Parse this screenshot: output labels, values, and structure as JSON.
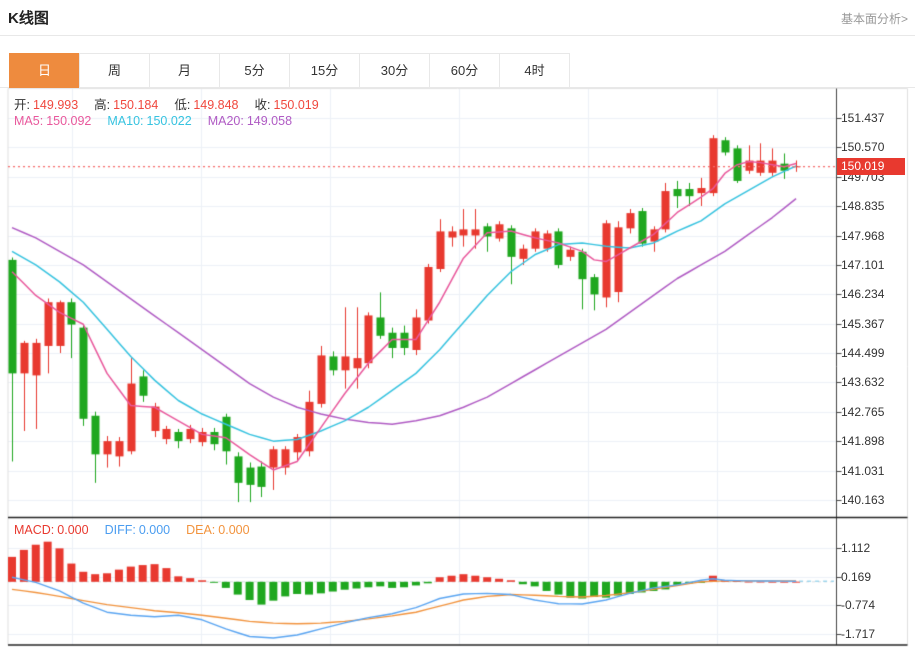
{
  "header": {
    "title": "K线图",
    "fundamental_link": "基本面分析>"
  },
  "tabs": [
    {
      "key": "day",
      "label": "日",
      "active": true
    },
    {
      "key": "week",
      "label": "周",
      "active": false
    },
    {
      "key": "month",
      "label": "月",
      "active": false
    },
    {
      "key": "min5",
      "label": "5分",
      "active": false
    },
    {
      "key": "min15",
      "label": "15分",
      "active": false
    },
    {
      "key": "min30",
      "label": "30分",
      "active": false
    },
    {
      "key": "min60",
      "label": "60分",
      "active": false
    },
    {
      "key": "hour4",
      "label": "4时",
      "active": false
    }
  ],
  "ohlc_bar": {
    "label_color": "#333333",
    "value_color": "#f0483e",
    "items": [
      {
        "label": "开:",
        "value": "149.993"
      },
      {
        "label": "高:",
        "value": "150.184"
      },
      {
        "label": "低:",
        "value": "149.848"
      },
      {
        "label": "收:",
        "value": "150.019"
      }
    ]
  },
  "ma_bar": {
    "items": [
      {
        "label": "MA5:",
        "value": "150.092",
        "color": "#e9589c"
      },
      {
        "label": "MA10:",
        "value": "150.022",
        "color": "#36c3e0"
      },
      {
        "label": "MA20:",
        "value": "149.058",
        "color": "#b05bc4"
      }
    ]
  },
  "macd_bar": {
    "items": [
      {
        "label": "MACD:",
        "value": "0.000",
        "color": "#e8392f"
      },
      {
        "label": "DIFF:",
        "value": "0.000",
        "color": "#4b9df0"
      },
      {
        "label": "DEA:",
        "value": "0.000",
        "color": "#f2933d"
      }
    ]
  },
  "price_badge": {
    "value": "150.019",
    "bg": "#e8392f"
  },
  "chart_data": {
    "type": "candlestick",
    "title": "K线图 (daily)",
    "price_axis_ticks": [
      151.437,
      150.57,
      149.703,
      148.835,
      147.968,
      147.101,
      146.234,
      145.367,
      144.499,
      143.632,
      142.765,
      141.898,
      141.031,
      140.163
    ],
    "macd_axis_ticks": [
      1.112,
      0.169,
      -0.774,
      -1.717
    ],
    "last_price": 150.019,
    "legend": {
      "ma5": 150.092,
      "ma10": 150.022,
      "ma20": 149.058,
      "macd": 0.0,
      "diff": 0.0,
      "dea": 0.0
    },
    "candles_ohlc": [
      [
        147.25,
        147.32,
        141.3,
        143.9
      ],
      [
        143.9,
        144.86,
        142.2,
        144.8
      ],
      [
        143.84,
        144.92,
        142.26,
        144.8
      ],
      [
        144.71,
        146.11,
        143.9,
        146.0
      ],
      [
        144.71,
        146.05,
        144.5,
        146.0
      ],
      [
        146.0,
        146.11,
        144.35,
        145.34
      ],
      [
        145.25,
        145.34,
        142.35,
        142.56
      ],
      [
        142.65,
        142.77,
        140.67,
        141.51
      ],
      [
        141.51,
        142.05,
        141.12,
        141.9
      ],
      [
        141.45,
        142.02,
        141.15,
        141.9
      ],
      [
        141.6,
        144.35,
        141.51,
        143.6
      ],
      [
        143.81,
        143.99,
        143.06,
        143.24
      ],
      [
        142.2,
        143.03,
        142.02,
        142.92
      ],
      [
        141.96,
        142.35,
        141.81,
        142.26
      ],
      [
        142.17,
        142.26,
        141.69,
        141.9
      ],
      [
        141.96,
        142.38,
        141.84,
        142.26
      ],
      [
        141.87,
        142.29,
        141.75,
        142.17
      ],
      [
        142.17,
        142.29,
        141.63,
        141.81
      ],
      [
        142.62,
        142.71,
        141.21,
        141.6
      ],
      [
        141.45,
        141.57,
        140.1,
        140.67
      ],
      [
        141.12,
        141.27,
        140.1,
        140.61
      ],
      [
        141.15,
        141.3,
        140.25,
        140.55
      ],
      [
        141.12,
        141.75,
        140.46,
        141.66
      ],
      [
        141.12,
        141.75,
        140.91,
        141.66
      ],
      [
        141.57,
        142.11,
        141.33,
        142.02
      ],
      [
        141.6,
        143.39,
        141.45,
        143.06
      ],
      [
        143.0,
        144.71,
        142.89,
        144.43
      ],
      [
        144.4,
        144.55,
        143.84,
        143.99
      ],
      [
        143.99,
        145.85,
        143.45,
        144.4
      ],
      [
        144.05,
        145.85,
        143.45,
        144.35
      ],
      [
        144.2,
        145.7,
        144.05,
        145.61
      ],
      [
        145.55,
        146.29,
        144.92,
        145.01
      ],
      [
        145.1,
        145.25,
        144.35,
        144.65
      ],
      [
        145.1,
        145.31,
        144.44,
        144.65
      ],
      [
        144.59,
        145.79,
        144.44,
        145.55
      ],
      [
        145.46,
        147.13,
        145.37,
        147.04
      ],
      [
        146.98,
        148.45,
        146.89,
        148.09
      ],
      [
        147.91,
        148.24,
        147.64,
        148.09
      ],
      [
        147.97,
        148.75,
        147.64,
        148.15
      ],
      [
        147.97,
        148.75,
        147.58,
        148.15
      ],
      [
        148.24,
        148.33,
        147.49,
        147.94
      ],
      [
        147.88,
        148.39,
        147.79,
        148.3
      ],
      [
        148.18,
        148.27,
        146.53,
        147.34
      ],
      [
        147.28,
        147.7,
        147.1,
        147.58
      ],
      [
        147.58,
        148.18,
        147.49,
        148.09
      ],
      [
        147.58,
        148.12,
        147.49,
        148.03
      ],
      [
        148.09,
        148.18,
        147.0,
        147.1
      ],
      [
        147.34,
        147.64,
        147.22,
        147.55
      ],
      [
        147.49,
        147.58,
        145.79,
        146.68
      ],
      [
        146.74,
        146.83,
        145.76,
        146.23
      ],
      [
        146.14,
        148.42,
        145.85,
        148.33
      ],
      [
        146.3,
        148.39,
        146.0,
        148.21
      ],
      [
        148.18,
        148.75,
        148.03,
        148.63
      ],
      [
        148.69,
        148.78,
        147.64,
        147.73
      ],
      [
        147.79,
        148.24,
        147.49,
        148.15
      ],
      [
        148.15,
        149.52,
        148.06,
        149.28
      ],
      [
        149.34,
        149.58,
        148.78,
        149.13
      ],
      [
        149.34,
        149.52,
        148.84,
        149.13
      ],
      [
        149.22,
        149.67,
        148.84,
        149.37
      ],
      [
        149.22,
        150.93,
        149.13,
        150.84
      ],
      [
        150.78,
        150.87,
        150.33,
        150.42
      ],
      [
        150.54,
        150.63,
        149.52,
        149.58
      ],
      [
        149.88,
        150.63,
        149.79,
        150.18
      ],
      [
        149.82,
        150.69,
        149.73,
        150.18
      ],
      [
        149.82,
        150.54,
        149.73,
        150.18
      ],
      [
        150.09,
        150.39,
        149.64,
        149.88
      ],
      [
        149.993,
        150.184,
        149.848,
        150.019
      ]
    ],
    "ma5_anchors": [
      [
        0,
        146.9
      ],
      [
        2,
        146.2
      ],
      [
        4,
        145.7
      ],
      [
        6,
        145.35
      ],
      [
        8,
        143.9
      ],
      [
        10,
        142.95
      ],
      [
        12,
        142.9
      ],
      [
        14,
        142.5
      ],
      [
        16,
        142.1
      ],
      [
        18,
        142.0
      ],
      [
        20,
        141.5
      ],
      [
        22,
        141.05
      ],
      [
        24,
        141.3
      ],
      [
        26,
        142.3
      ],
      [
        28,
        143.3
      ],
      [
        30,
        144.2
      ],
      [
        32,
        144.9
      ],
      [
        34,
        144.9
      ],
      [
        36,
        146.0
      ],
      [
        38,
        147.3
      ],
      [
        40,
        148.05
      ],
      [
        42,
        148.1
      ],
      [
        44,
        147.9
      ],
      [
        46,
        147.75
      ],
      [
        48,
        147.5
      ],
      [
        49,
        147.25
      ],
      [
        50,
        147.2
      ],
      [
        52,
        147.6
      ],
      [
        54,
        148.0
      ],
      [
        56,
        148.65
      ],
      [
        58,
        149.1
      ],
      [
        59,
        149.35
      ],
      [
        60,
        149.8
      ],
      [
        61,
        150.05
      ],
      [
        62,
        150.15
      ],
      [
        63,
        150.12
      ],
      [
        64,
        150.06
      ],
      [
        65,
        150.0
      ],
      [
        66,
        150.092
      ]
    ],
    "ma10_anchors": [
      [
        0,
        147.5
      ],
      [
        2,
        147.1
      ],
      [
        4,
        146.6
      ],
      [
        6,
        146.0
      ],
      [
        8,
        145.2
      ],
      [
        10,
        144.4
      ],
      [
        12,
        143.7
      ],
      [
        14,
        143.1
      ],
      [
        16,
        142.7
      ],
      [
        18,
        142.4
      ],
      [
        20,
        142.1
      ],
      [
        22,
        141.9
      ],
      [
        24,
        141.95
      ],
      [
        26,
        142.2
      ],
      [
        28,
        142.5
      ],
      [
        30,
        142.9
      ],
      [
        32,
        143.4
      ],
      [
        34,
        143.9
      ],
      [
        36,
        144.6
      ],
      [
        38,
        145.4
      ],
      [
        40,
        146.2
      ],
      [
        42,
        146.9
      ],
      [
        44,
        147.4
      ],
      [
        46,
        147.7
      ],
      [
        48,
        147.75
      ],
      [
        50,
        147.65
      ],
      [
        52,
        147.6
      ],
      [
        54,
        147.75
      ],
      [
        56,
        148.1
      ],
      [
        58,
        148.4
      ],
      [
        60,
        148.9
      ],
      [
        62,
        149.3
      ],
      [
        64,
        149.7
      ],
      [
        66,
        150.022
      ]
    ],
    "ma20_anchors": [
      [
        0,
        148.2
      ],
      [
        2,
        147.9
      ],
      [
        4,
        147.5
      ],
      [
        6,
        147.1
      ],
      [
        8,
        146.6
      ],
      [
        10,
        146.1
      ],
      [
        12,
        145.6
      ],
      [
        14,
        145.1
      ],
      [
        16,
        144.6
      ],
      [
        18,
        144.1
      ],
      [
        20,
        143.6
      ],
      [
        22,
        143.2
      ],
      [
        24,
        142.9
      ],
      [
        26,
        142.7
      ],
      [
        28,
        142.55
      ],
      [
        30,
        142.45
      ],
      [
        32,
        142.4
      ],
      [
        34,
        142.5
      ],
      [
        36,
        142.65
      ],
      [
        38,
        142.9
      ],
      [
        40,
        143.2
      ],
      [
        42,
        143.6
      ],
      [
        44,
        144.0
      ],
      [
        46,
        144.4
      ],
      [
        48,
        144.8
      ],
      [
        50,
        145.2
      ],
      [
        52,
        145.7
      ],
      [
        54,
        146.2
      ],
      [
        56,
        146.7
      ],
      [
        58,
        147.1
      ],
      [
        60,
        147.5
      ],
      [
        62,
        148.0
      ],
      [
        64,
        148.5
      ],
      [
        66,
        149.058
      ]
    ],
    "macd_hist": [
      0.82,
      1.05,
      1.22,
      1.32,
      1.1,
      0.6,
      0.33,
      0.25,
      0.28,
      0.4,
      0.5,
      0.55,
      0.58,
      0.45,
      0.18,
      0.12,
      0.05,
      -0.03,
      -0.2,
      -0.42,
      -0.6,
      -0.75,
      -0.62,
      -0.48,
      -0.4,
      -0.42,
      -0.38,
      -0.32,
      -0.26,
      -0.22,
      -0.18,
      -0.15,
      -0.2,
      -0.18,
      -0.12,
      -0.05,
      0.15,
      0.2,
      0.25,
      0.2,
      0.15,
      0.1,
      0.05,
      -0.08,
      -0.15,
      -0.3,
      -0.42,
      -0.52,
      -0.55,
      -0.5,
      -0.52,
      -0.45,
      -0.4,
      -0.35,
      -0.3,
      -0.25,
      -0.1,
      -0.05,
      -0.03,
      0.2,
      0.06,
      0.03,
      0.01,
      0.01,
      0.005,
      0.005,
      0.005
    ],
    "diff_anchors": [
      [
        0,
        0.15
      ],
      [
        2,
        -0.02
      ],
      [
        4,
        -0.3
      ],
      [
        6,
        -0.7
      ],
      [
        8,
        -1.0
      ],
      [
        10,
        -1.1
      ],
      [
        12,
        -1.15
      ],
      [
        14,
        -1.1
      ],
      [
        16,
        -1.25
      ],
      [
        18,
        -1.55
      ],
      [
        20,
        -1.8
      ],
      [
        22,
        -1.85
      ],
      [
        24,
        -1.75
      ],
      [
        26,
        -1.55
      ],
      [
        28,
        -1.35
      ],
      [
        30,
        -1.18
      ],
      [
        32,
        -1.05
      ],
      [
        34,
        -0.85
      ],
      [
        36,
        -0.55
      ],
      [
        38,
        -0.4
      ],
      [
        40,
        -0.38
      ],
      [
        42,
        -0.42
      ],
      [
        44,
        -0.6
      ],
      [
        46,
        -0.72
      ],
      [
        48,
        -0.73
      ],
      [
        50,
        -0.6
      ],
      [
        52,
        -0.38
      ],
      [
        54,
        -0.2
      ],
      [
        56,
        -0.1
      ],
      [
        58,
        0.05
      ],
      [
        59,
        0.1
      ],
      [
        60,
        0.05
      ],
      [
        62,
        0.03
      ],
      [
        66,
        0.02
      ]
    ],
    "dea_anchors": [
      [
        0,
        -0.25
      ],
      [
        2,
        -0.35
      ],
      [
        4,
        -0.48
      ],
      [
        6,
        -0.62
      ],
      [
        8,
        -0.75
      ],
      [
        10,
        -0.85
      ],
      [
        12,
        -0.95
      ],
      [
        14,
        -1.02
      ],
      [
        16,
        -1.1
      ],
      [
        18,
        -1.2
      ],
      [
        20,
        -1.3
      ],
      [
        22,
        -1.36
      ],
      [
        24,
        -1.38
      ],
      [
        26,
        -1.36
      ],
      [
        28,
        -1.3
      ],
      [
        30,
        -1.22
      ],
      [
        32,
        -1.12
      ],
      [
        34,
        -1.0
      ],
      [
        36,
        -0.8
      ],
      [
        38,
        -0.6
      ],
      [
        40,
        -0.48
      ],
      [
        42,
        -0.42
      ],
      [
        44,
        -0.44
      ],
      [
        46,
        -0.48
      ],
      [
        48,
        -0.5
      ],
      [
        50,
        -0.45
      ],
      [
        52,
        -0.36
      ],
      [
        54,
        -0.25
      ],
      [
        56,
        -0.12
      ],
      [
        58,
        0.0
      ],
      [
        60,
        0.03
      ],
      [
        66,
        0.03
      ]
    ],
    "colors": {
      "up": "#e8392f",
      "down": "#1fa71f",
      "ma5": "#e9589c",
      "ma10": "#36c3e0",
      "ma20": "#b05bc4",
      "diff": "#5aa5f2",
      "dea": "#f2933d",
      "last_price_line": "#f56c6c",
      "grid": "#edf1f7",
      "axis": "#444444",
      "panel_divider": "#222222"
    }
  }
}
